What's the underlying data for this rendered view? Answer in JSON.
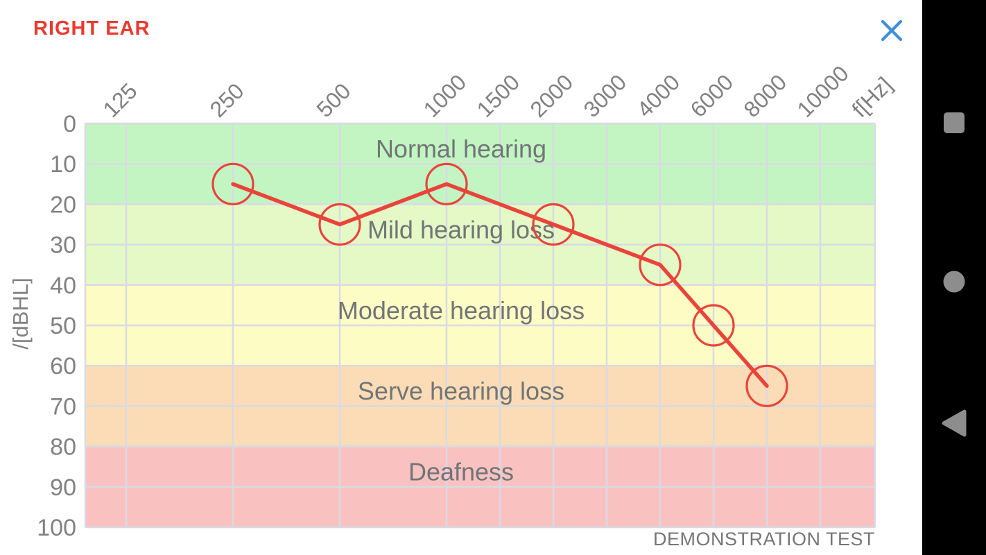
{
  "app": {
    "title": "RIGHT EAR",
    "title_color": "#e83a30",
    "close_icon": "x-close",
    "close_icon_color": "#3e8fd9",
    "footer_note": "DEMONSTRATION TEST"
  },
  "nav_bar": {
    "background": "#000000",
    "icon_color": "#8d8d8d",
    "buttons": [
      {
        "name": "recents",
        "icon": "square-icon"
      },
      {
        "name": "home",
        "icon": "circle-icon"
      },
      {
        "name": "back",
        "icon": "triangle-left-icon"
      }
    ]
  },
  "chart_data": {
    "type": "line",
    "title": "RIGHT EAR",
    "footer": "DEMONSTRATION TEST",
    "x_axis": {
      "label": "f[Hz]",
      "ticks": [
        "125",
        "250",
        "500",
        "1000",
        "1500",
        "2000",
        "3000",
        "4000",
        "6000",
        "8000",
        "10000"
      ],
      "scale": "audiogram-log"
    },
    "y_axis": {
      "label": "/[dBHL]",
      "ticks": [
        0,
        10,
        20,
        30,
        40,
        50,
        60,
        70,
        80,
        90,
        100
      ],
      "min": 0,
      "max": 100,
      "inverted": true
    },
    "bands": [
      {
        "label": "Normal hearing",
        "from": 0,
        "to": 20,
        "color": "#c3f5c3"
      },
      {
        "label": "Mild hearing loss",
        "from": 20,
        "to": 40,
        "color": "#e5f9c7"
      },
      {
        "label": "Moderate hearing loss",
        "from": 40,
        "to": 60,
        "color": "#fdfcc5"
      },
      {
        "label": "Serve hearing loss",
        "from": 60,
        "to": 80,
        "color": "#fcdcb6"
      },
      {
        "label": "Deafness",
        "from": 80,
        "to": 100,
        "color": "#f9c2c1"
      }
    ],
    "series": [
      {
        "name": "right-ear-threshold",
        "color": "#e9443a",
        "marker": "open-circle",
        "points": [
          {
            "f": "250",
            "db": 15
          },
          {
            "f": "500",
            "db": 25
          },
          {
            "f": "1000",
            "db": 15
          },
          {
            "f": "2000",
            "db": 25
          },
          {
            "f": "4000",
            "db": 35
          },
          {
            "f": "6000",
            "db": 50
          },
          {
            "f": "8000",
            "db": 65
          }
        ]
      }
    ],
    "grid": true,
    "grid_color": "#d9dae3",
    "axis_text_color": "#818181",
    "band_text_color": "#717577"
  }
}
